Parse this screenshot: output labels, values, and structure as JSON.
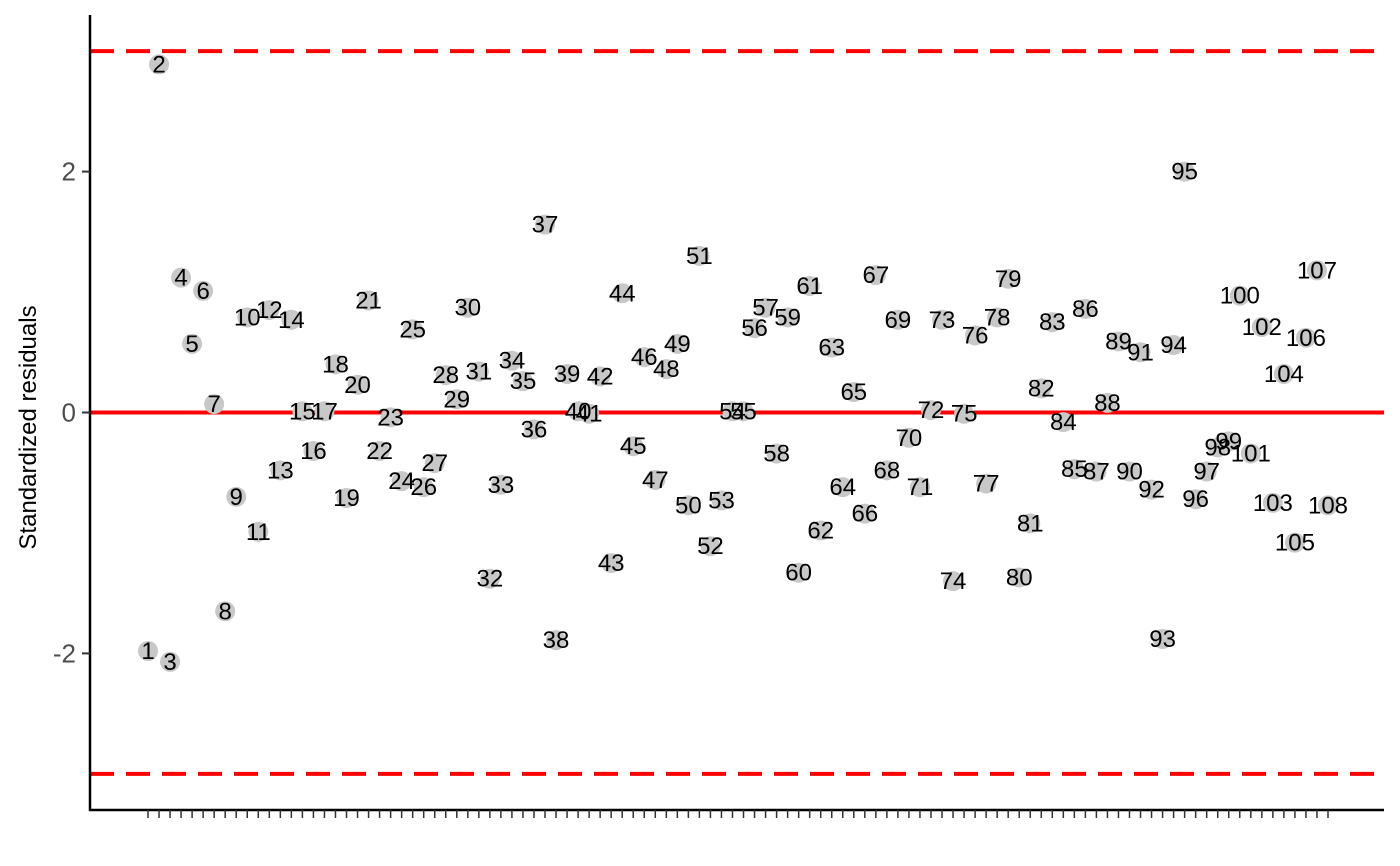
{
  "chart_data": {
    "type": "scatter",
    "title": "",
    "xlabel": "",
    "ylabel": "Standardized residuals",
    "ylim": [
      -3.3,
      3.3
    ],
    "y_ticks": [
      -2,
      0,
      2
    ],
    "x_range": [
      1,
      108
    ],
    "grid": false,
    "reference_lines": [
      {
        "y": 0,
        "style": "solid",
        "color": "#ff0000"
      },
      {
        "y": 3,
        "style": "dashed",
        "color": "#ff0000"
      },
      {
        "y": -3,
        "style": "dashed",
        "color": "#ff0000"
      }
    ],
    "point_color": "#c8c8c8",
    "x": [
      1,
      2,
      3,
      4,
      5,
      6,
      7,
      8,
      9,
      10,
      11,
      12,
      13,
      14,
      15,
      16,
      17,
      18,
      19,
      20,
      21,
      22,
      23,
      24,
      25,
      26,
      27,
      28,
      29,
      30,
      31,
      32,
      33,
      34,
      35,
      36,
      37,
      38,
      39,
      40,
      41,
      42,
      43,
      44,
      45,
      46,
      47,
      48,
      49,
      50,
      51,
      52,
      53,
      54,
      55,
      56,
      57,
      58,
      59,
      60,
      61,
      62,
      63,
      64,
      65,
      66,
      67,
      68,
      69,
      70,
      71,
      72,
      73,
      74,
      75,
      76,
      77,
      78,
      79,
      80,
      81,
      82,
      83,
      84,
      85,
      86,
      87,
      88,
      89,
      90,
      91,
      92,
      93,
      94,
      95,
      96,
      97,
      98,
      99,
      100,
      101,
      102,
      103,
      104,
      105,
      106,
      107,
      108
    ],
    "labels": [
      "1",
      "2",
      "3",
      "4",
      "5",
      "6",
      "7",
      "8",
      "9",
      "10",
      "11",
      "12",
      "13",
      "14",
      "15",
      "16",
      "17",
      "18",
      "19",
      "20",
      "21",
      "22",
      "23",
      "24",
      "25",
      "26",
      "27",
      "28",
      "29",
      "30",
      "31",
      "32",
      "33",
      "34",
      "35",
      "36",
      "37",
      "38",
      "39",
      "40",
      "41",
      "42",
      "43",
      "44",
      "45",
      "46",
      "47",
      "48",
      "49",
      "50",
      "51",
      "52",
      "53",
      "54",
      "55",
      "56",
      "57",
      "58",
      "59",
      "60",
      "61",
      "62",
      "63",
      "64",
      "65",
      "66",
      "67",
      "68",
      "69",
      "70",
      "71",
      "72",
      "73",
      "74",
      "75",
      "76",
      "77",
      "78",
      "79",
      "80",
      "81",
      "82",
      "83",
      "84",
      "85",
      "86",
      "87",
      "88",
      "89",
      "90",
      "91",
      "92",
      "93",
      "94",
      "95",
      "96",
      "97",
      "98",
      "99",
      "100",
      "101",
      "102",
      "103",
      "104",
      "105",
      "106",
      "107",
      "108"
    ],
    "values": [
      -1.98,
      2.89,
      -2.07,
      1.12,
      0.57,
      1.01,
      0.07,
      -1.65,
      -0.7,
      0.79,
      -0.99,
      0.85,
      -0.48,
      0.77,
      0.01,
      -0.32,
      0.01,
      0.4,
      -0.71,
      0.23,
      0.93,
      -0.32,
      -0.04,
      -0.57,
      0.69,
      -0.62,
      -0.42,
      0.31,
      0.11,
      0.87,
      0.34,
      -1.38,
      -0.6,
      0.43,
      0.26,
      -0.14,
      1.56,
      -1.89,
      0.32,
      0.01,
      -0.01,
      0.3,
      -1.25,
      0.99,
      -0.28,
      0.46,
      -0.56,
      0.36,
      0.57,
      -0.77,
      1.3,
      -1.11,
      -0.73,
      0.01,
      0.01,
      0.7,
      0.87,
      -0.34,
      0.79,
      -1.33,
      1.05,
      -0.98,
      0.54,
      -0.62,
      0.17,
      -0.84,
      1.14,
      -0.48,
      0.77,
      -0.21,
      -0.62,
      0.02,
      0.77,
      -1.4,
      -0.01,
      0.64,
      -0.59,
      0.79,
      1.11,
      -1.37,
      -0.92,
      0.2,
      0.75,
      -0.08,
      -0.47,
      0.86,
      -0.49,
      0.08,
      0.59,
      -0.49,
      0.5,
      -0.64,
      -1.88,
      0.56,
      2.0,
      -0.72,
      -0.49,
      -0.29,
      -0.24,
      0.97,
      -0.34,
      0.71,
      -0.75,
      0.32,
      -1.08,
      0.62,
      1.18,
      -0.77
    ]
  }
}
